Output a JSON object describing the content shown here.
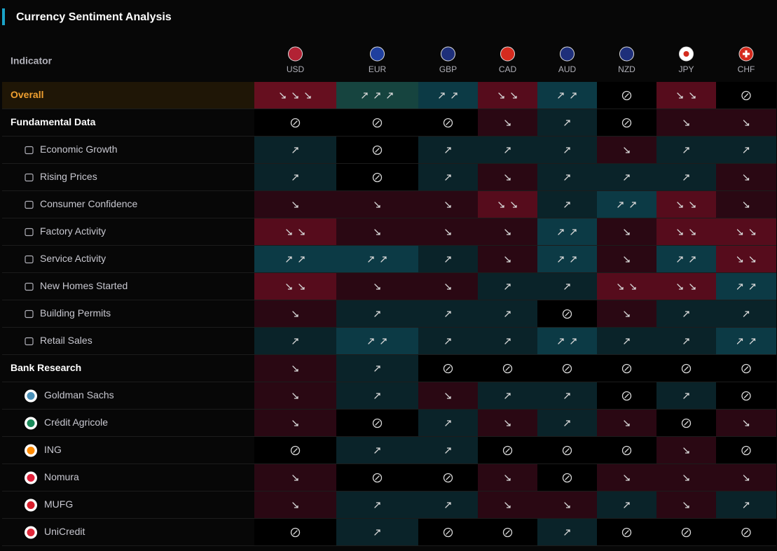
{
  "header": {
    "title": "Currency Sentiment Analysis"
  },
  "table": {
    "column_label": "Indicator",
    "currencies": [
      "USD",
      "EUR",
      "GBP",
      "CAD",
      "AUD",
      "NZD",
      "JPY",
      "CHF"
    ],
    "overall": {
      "label": "Overall",
      "values": [
        -3,
        3,
        2,
        -2,
        2,
        0,
        -2,
        0
      ]
    },
    "sections": [
      {
        "label": "Fundamental Data",
        "values": [
          0,
          0,
          0,
          -1,
          1,
          0,
          -1,
          -1
        ],
        "rows": [
          {
            "label": "Economic Growth",
            "values": [
              1,
              0,
              1,
              1,
              1,
              -1,
              1,
              1
            ]
          },
          {
            "label": "Rising Prices",
            "values": [
              1,
              0,
              1,
              -1,
              1,
              1,
              1,
              -1
            ]
          },
          {
            "label": "Consumer Confidence",
            "values": [
              -1,
              -1,
              -1,
              -2,
              1,
              2,
              -2,
              -1
            ]
          },
          {
            "label": "Factory Activity",
            "values": [
              -2,
              -1,
              -1,
              -1,
              2,
              -1,
              -2,
              -2
            ]
          },
          {
            "label": "Service Activity",
            "values": [
              2,
              2,
              1,
              -1,
              2,
              -1,
              2,
              -2
            ]
          },
          {
            "label": "New Homes Started",
            "values": [
              -2,
              -1,
              -1,
              1,
              1,
              -2,
              -2,
              2
            ]
          },
          {
            "label": "Building Permits",
            "values": [
              -1,
              1,
              1,
              1,
              0,
              -1,
              1,
              1
            ]
          },
          {
            "label": "Retail Sales",
            "values": [
              1,
              2,
              1,
              1,
              2,
              1,
              1,
              2
            ]
          }
        ]
      },
      {
        "label": "Bank Research",
        "values": [
          -1,
          1,
          0,
          0,
          0,
          0,
          0,
          0
        ],
        "rows": [
          {
            "label": "Goldman Sachs",
            "values": [
              -1,
              1,
              -1,
              1,
              1,
              0,
              1,
              0
            ]
          },
          {
            "label": "Crédit Agricole",
            "values": [
              -1,
              0,
              1,
              -1,
              1,
              -1,
              0,
              -1
            ]
          },
          {
            "label": "ING",
            "values": [
              0,
              1,
              1,
              0,
              0,
              0,
              -1,
              0
            ]
          },
          {
            "label": "Nomura",
            "values": [
              -1,
              0,
              0,
              -1,
              0,
              -1,
              -1,
              -1
            ]
          },
          {
            "label": "MUFG",
            "values": [
              -1,
              1,
              1,
              -1,
              -1,
              1,
              -1,
              1
            ]
          },
          {
            "label": "UniCredit",
            "values": [
              0,
              1,
              0,
              0,
              1,
              0,
              0,
              0
            ]
          }
        ]
      }
    ]
  }
}
